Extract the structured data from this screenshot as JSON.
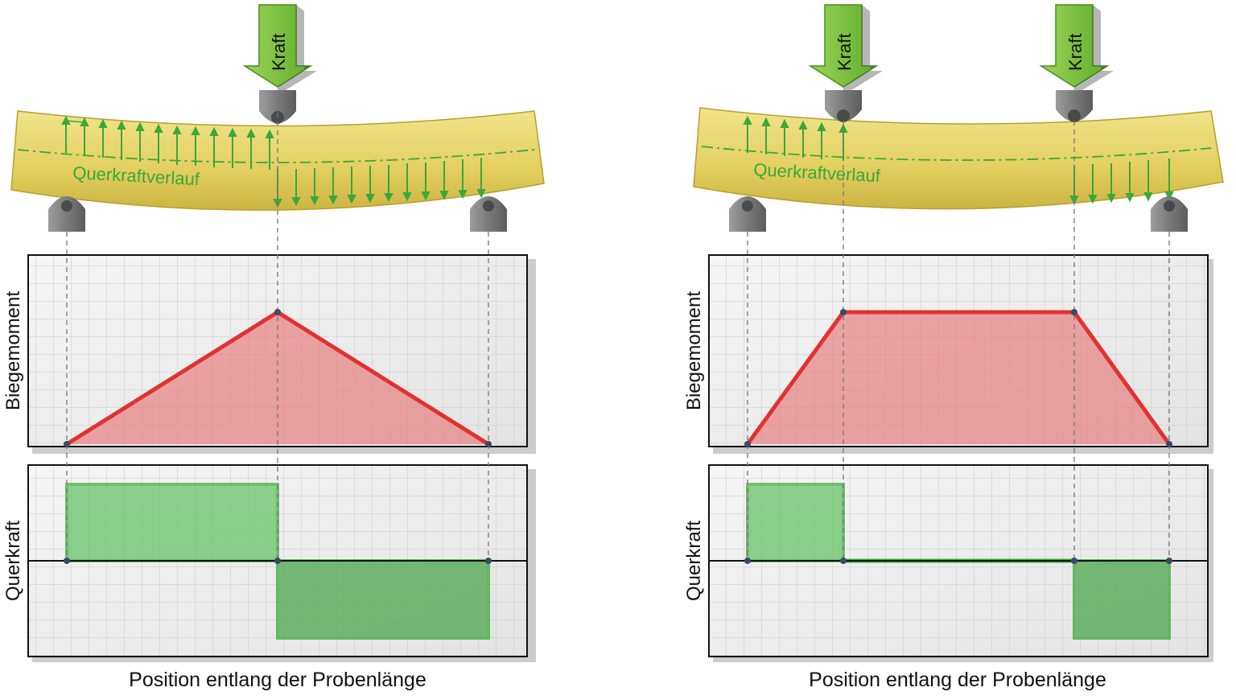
{
  "diagrams": [
    {
      "id": "three-point",
      "force_label": "Kraft",
      "beam_label": "Querkraftverlauf",
      "moment_axis_label": "Biegemoment",
      "shear_axis_label": "Querkraft",
      "x_axis_label": "Position entlang der Probenlänge"
    },
    {
      "id": "four-point",
      "force_label": "Kraft",
      "beam_label": "Querkraftverlauf",
      "moment_axis_label": "Biegemoment",
      "shear_axis_label": "Querkraft",
      "x_axis_label": "Position entlang der Probenlänge"
    }
  ],
  "colors": {
    "beam": "#e2cf5e",
    "force_arrow": "#7cc242",
    "shear_arrows": "#3aa83a",
    "moment_fill": "#e8787a",
    "moment_line": "#e0332f",
    "shear_fill": "#5fc25f",
    "shear_line": "#3aa83a",
    "support": "#8a8a8a",
    "grid_bg": "#eeeeee"
  }
}
